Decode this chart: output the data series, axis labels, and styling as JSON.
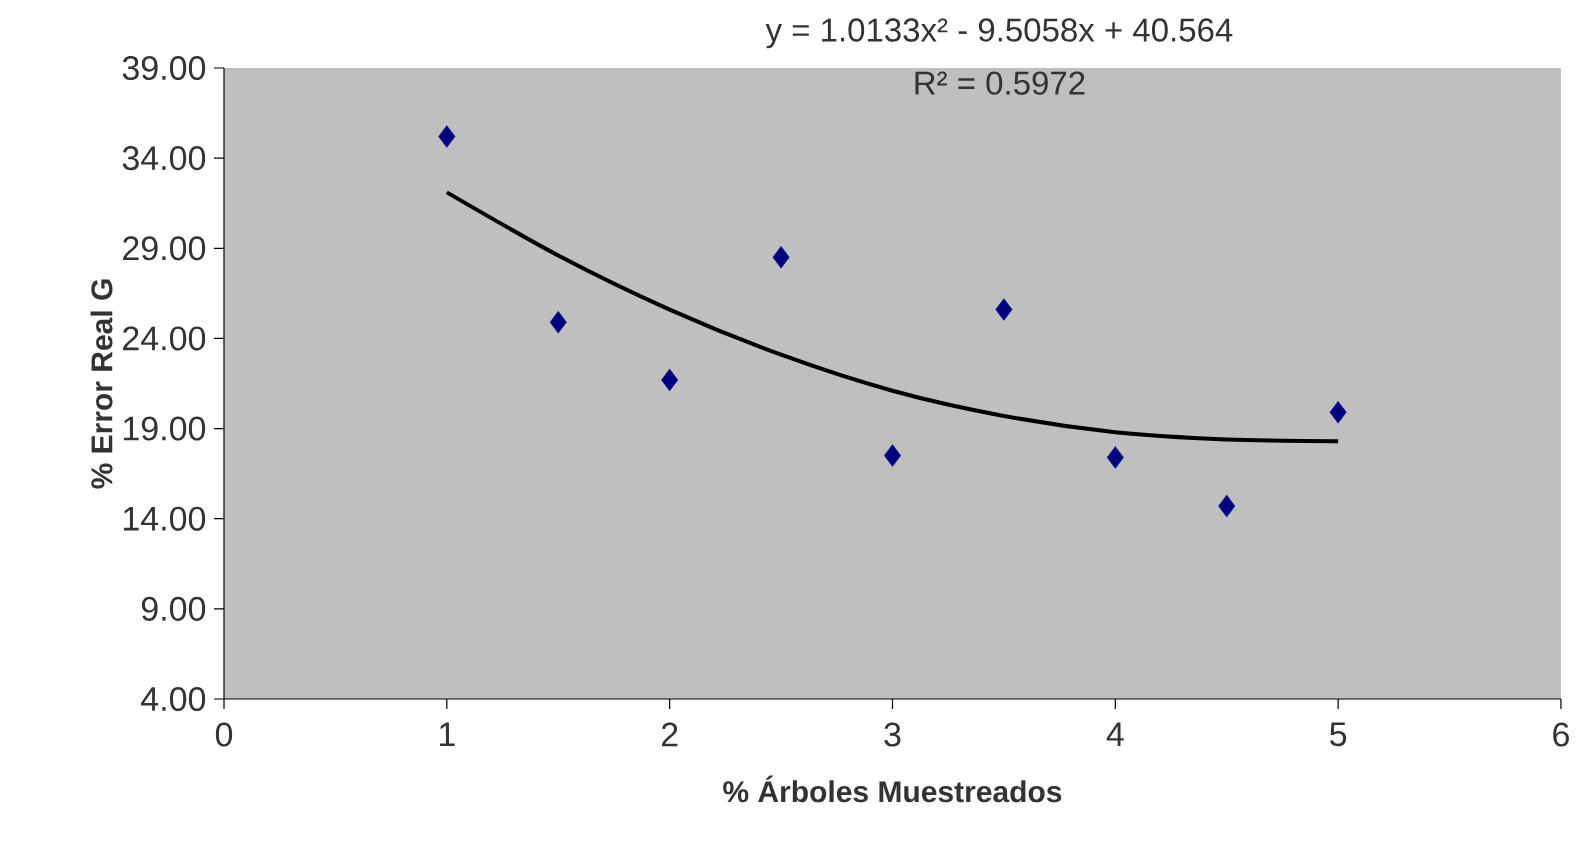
{
  "chart_data": {
    "type": "scatter",
    "xlabel": "% Árboles Muestreados",
    "ylabel": "% Error Real G",
    "annotations": [
      "y = 1.0133x² - 9.5058x + 40.564",
      "R² = 0.5972"
    ],
    "xlim": [
      0,
      6
    ],
    "xticks": [
      0,
      1,
      2,
      3,
      4,
      5,
      6
    ],
    "ylim": [
      4,
      39
    ],
    "yticks": [
      {
        "value": 4,
        "label": "4.00"
      },
      {
        "value": 9,
        "label": "9.00"
      },
      {
        "value": 14,
        "label": "14.00"
      },
      {
        "value": 19,
        "label": "19.00"
      },
      {
        "value": 24,
        "label": "24.00"
      },
      {
        "value": 29,
        "label": "29.00"
      },
      {
        "value": 34,
        "label": "34.00"
      },
      {
        "value": 39,
        "label": "39.00"
      }
    ],
    "grid": false,
    "series": [
      {
        "type": "line",
        "color": "#000000",
        "marker": "none",
        "line_style": "solid",
        "x": [
          1,
          1.5,
          2,
          2.5,
          3,
          3.5,
          4,
          4.5,
          5
        ],
        "values": [
          32.1,
          28.6,
          25.6,
          23.1,
          21.1,
          19.7,
          18.8,
          18.4,
          18.3
        ]
      },
      {
        "color": "#000080",
        "marker": "diamond",
        "x": [
          1,
          1.5,
          2,
          2.5,
          3,
          3.5,
          4,
          4.5,
          5
        ],
        "values": [
          35.2,
          24.9,
          21.7,
          28.5,
          17.5,
          25.6,
          17.4,
          14.7,
          19.9
        ]
      }
    ]
  }
}
